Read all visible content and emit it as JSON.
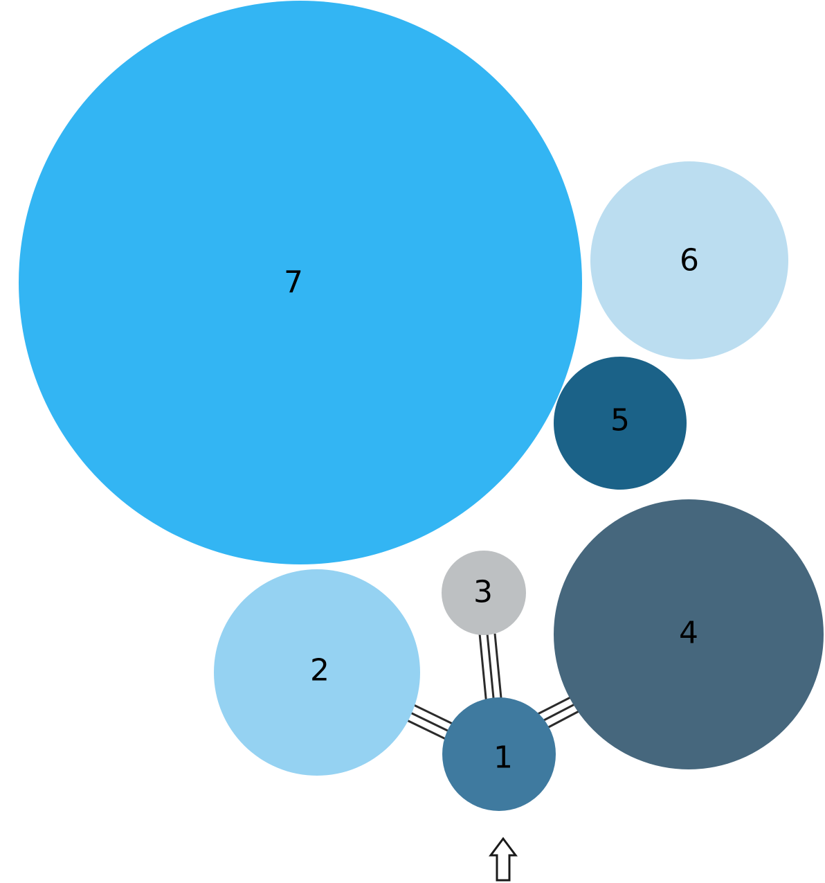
{
  "nodes": [
    {
      "id": "1",
      "label": "1",
      "color": "#3f7a9f"
    },
    {
      "id": "2",
      "label": "2",
      "color": "#95d2f2"
    },
    {
      "id": "3",
      "label": "3",
      "color": "#bdc0c2"
    },
    {
      "id": "4",
      "label": "4",
      "color": "#46677d"
    },
    {
      "id": "5",
      "label": "5",
      "color": "#1b6288"
    },
    {
      "id": "6",
      "label": "6",
      "color": "#bbddf0"
    },
    {
      "id": "7",
      "label": "7",
      "color": "#33b5f3"
    }
  ],
  "connections": [
    {
      "from": "1",
      "to": "2",
      "lines": 3
    },
    {
      "from": "1",
      "to": "3",
      "lines": 3
    },
    {
      "from": "1",
      "to": "4",
      "lines": 3
    }
  ],
  "entry_arrow": {
    "icon": "up-arrow-icon",
    "target": "1",
    "direction": "up"
  }
}
